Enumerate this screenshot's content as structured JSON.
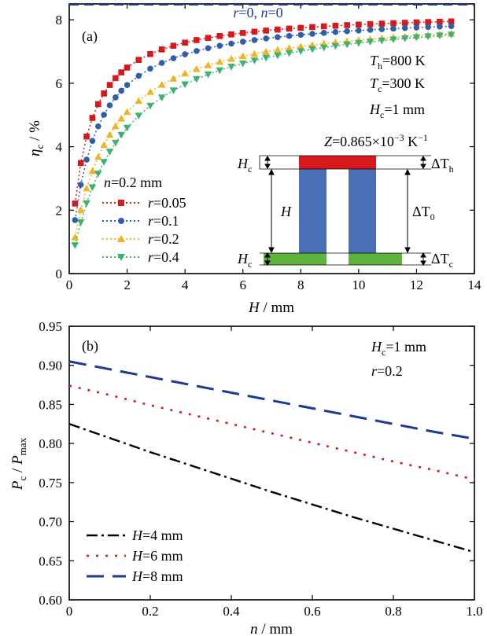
{
  "chart_data": [
    {
      "type": "scatter",
      "panel_label": "(a)",
      "xlabel_var": "H",
      "xlabel_unit": " / mm",
      "ylabel_var": "η",
      "ylabel_sub": "c",
      "ylabel_unit": " / %",
      "xlim": [
        0,
        14
      ],
      "ylim": [
        0,
        8.5
      ],
      "xticks": [
        "0",
        "2",
        "4",
        "6",
        "8",
        "10",
        "12",
        "14"
      ],
      "yticks": [
        "0",
        "2",
        "4",
        "6",
        "8"
      ],
      "reference_line": {
        "value": 8.5,
        "var1": "r",
        "val1": "=0, ",
        "var2": "n",
        "val2": "=0",
        "color": "#1f3a93"
      },
      "legend": {
        "title_var": "n",
        "title_val": "=0.2 mm",
        "placement": "center-left"
      },
      "annotations": [
        {
          "var": "T",
          "sub": "h",
          "val": "=800 K"
        },
        {
          "var": "T",
          "sub": "c",
          "val": "=300 K"
        },
        {
          "var": "H",
          "sub": "c",
          "val": "=1 mm"
        },
        {
          "var": "Z",
          "sub": "",
          "val": "=0.865×10",
          "sup": "−3",
          "tail": " K",
          "sup2": "−1"
        }
      ],
      "series": [
        {
          "name": "r=0.05",
          "var": "r",
          "val": "=0.05",
          "color": "#d7191c",
          "marker": "square",
          "asymptote": 8.28,
          "half": 0.55
        },
        {
          "name": "r=0.1",
          "var": "r",
          "val": "=0.1",
          "color": "#2f5fa8",
          "marker": "circle",
          "asymptote": 8.26,
          "half": 0.78
        },
        {
          "name": "r=0.2",
          "var": "r",
          "val": "=0.2",
          "color": "#f0b323",
          "marker": "triangle-up",
          "asymptote": 8.28,
          "half": 1.25
        },
        {
          "name": "r=0.4",
          "var": "r",
          "val": "=0.4",
          "color": "#3cb371",
          "marker": "triangle-down",
          "asymptote": 8.5,
          "half": 1.7
        }
      ],
      "x_values": [
        0.2,
        0.4,
        0.6,
        0.8,
        1.0,
        1.2,
        1.4,
        1.6,
        1.8,
        2.0,
        2.4,
        2.8,
        3.2,
        3.6,
        4.0,
        4.4,
        4.8,
        5.2,
        5.6,
        6.0,
        6.4,
        6.8,
        7.2,
        7.6,
        8.0,
        8.4,
        8.8,
        9.2,
        9.6,
        10.0,
        10.4,
        10.8,
        11.2,
        11.6,
        12.0,
        12.4,
        12.8,
        13.2
      ],
      "inset": {
        "labels": {
          "hc_top": "H",
          "hc_top_sub": "c",
          "h": "H",
          "hc_bot": "H",
          "hc_bot_sub": "c",
          "dth": "ΔT",
          "dth_sub": "h",
          "dt0": "ΔT",
          "dt0_sub": "0",
          "dtc": "ΔT",
          "dtc_sub": "c"
        },
        "colors": {
          "hot": "#d7191c",
          "leg": "#4a6fb5",
          "cold": "#5db33b"
        }
      }
    },
    {
      "type": "line",
      "panel_label": "(b)",
      "xlabel_var": "n",
      "xlabel_unit": " / mm",
      "ylabel_var": "P",
      "ylabel_sub": "c",
      "ylabel_mid": " / ",
      "ylabel_var2": "P",
      "ylabel_sub2": "max",
      "xlim": [
        0,
        1.0
      ],
      "ylim": [
        0.6,
        0.95
      ],
      "xticks": [
        "0",
        "0.2",
        "0.4",
        "0.6",
        "0.8",
        "1.0"
      ],
      "yticks": [
        "0.60",
        "0.65",
        "0.70",
        "0.75",
        "0.80",
        "0.85",
        "0.90",
        "0.95"
      ],
      "annotations": [
        {
          "var": "H",
          "sub": "c",
          "val": "=1 mm"
        },
        {
          "var": "r",
          "sub": "",
          "val": "=0.2"
        }
      ],
      "legend": {
        "placement": "bottom-left"
      },
      "x": [
        0,
        0.1,
        0.2,
        0.3,
        0.4,
        0.5,
        0.6,
        0.7,
        0.8,
        0.9,
        1.0
      ],
      "series": [
        {
          "name": "H=4 mm",
          "var": "H",
          "val": "=4 mm",
          "color": "#000000",
          "dash": "dashdot",
          "values": [
            0.825,
            0.807,
            0.789,
            0.772,
            0.755,
            0.738,
            0.722,
            0.706,
            0.691,
            0.676,
            0.661
          ]
        },
        {
          "name": "H=6 mm",
          "var": "H",
          "val": "=6 mm",
          "color": "#d7191c",
          "dash": "dot",
          "values": [
            0.874,
            0.862,
            0.849,
            0.837,
            0.825,
            0.813,
            0.801,
            0.789,
            0.777,
            0.766,
            0.754
          ]
        },
        {
          "name": "H=8 mm",
          "var": "H",
          "val": "=8 mm",
          "color": "#1f3a93",
          "dash": "dash",
          "values": [
            0.905,
            0.895,
            0.885,
            0.875,
            0.865,
            0.855,
            0.845,
            0.835,
            0.825,
            0.815,
            0.806
          ]
        }
      ]
    }
  ]
}
